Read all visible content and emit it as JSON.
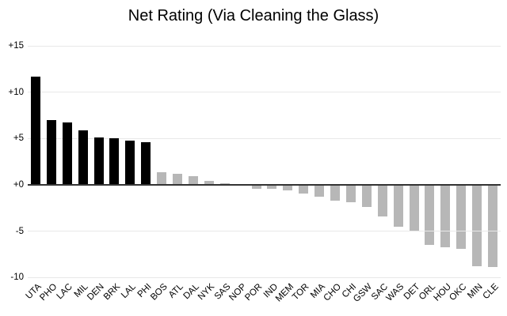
{
  "chart_data": {
    "type": "bar",
    "title": "Net Rating (Via Cleaning the Glass)",
    "categories": [
      "UTA",
      "PHO",
      "LAC",
      "MIL",
      "DEN",
      "BRK",
      "LAL",
      "PHI",
      "BOS",
      "ATL",
      "DAL",
      "NYK",
      "SAS",
      "NOP",
      "POR",
      "IND",
      "MEM",
      "TOR",
      "MIA",
      "CHO",
      "CHI",
      "GSW",
      "SAC",
      "WAS",
      "DET",
      "ORL",
      "HOU",
      "OKC",
      "MIN",
      "CLE"
    ],
    "values": [
      11.7,
      7.0,
      6.7,
      5.9,
      5.1,
      5.0,
      4.8,
      4.6,
      1.4,
      1.2,
      0.9,
      0.4,
      0.2,
      -0.1,
      -0.4,
      -0.4,
      -0.6,
      -0.9,
      -1.3,
      -1.7,
      -1.9,
      -2.4,
      -3.4,
      -4.5,
      -5.0,
      -6.5,
      -6.7,
      -6.9,
      -8.8,
      -8.9
    ],
    "highlight_count": 8,
    "xlabel": "",
    "ylabel": "",
    "ylim": [
      -10,
      15
    ],
    "y_ticks": [
      {
        "label": "+15",
        "value": 15
      },
      {
        "label": "+10",
        "value": 10
      },
      {
        "label": "+5",
        "value": 5
      },
      {
        "label": "+0",
        "value": 0
      },
      {
        "label": "-5",
        "value": -5
      },
      {
        "label": "-10",
        "value": -10
      }
    ],
    "grid": true,
    "legend": "none",
    "colors": {
      "highlight_bar": "#000000",
      "default_bar": "#b7b7b7",
      "gridline": "#e8e8e8",
      "zero_axis": "#333333",
      "text": "#000000"
    }
  }
}
